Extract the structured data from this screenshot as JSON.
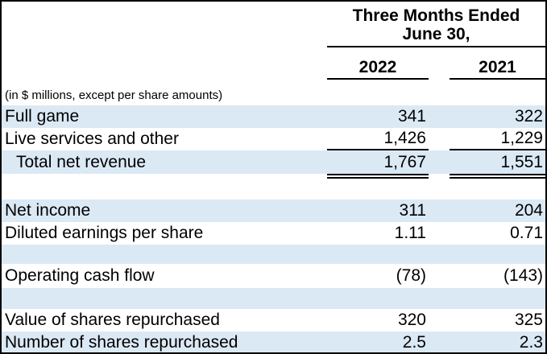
{
  "document": {
    "header": {
      "title_line1": "Three Months Ended",
      "title_line2": "June 30,",
      "year_col_1": "2022",
      "year_col_2": "2021"
    },
    "note": "(in $ millions, except per share amounts)",
    "rows": [
      {
        "label": "Full game",
        "y2022": "341",
        "y2021": "322"
      },
      {
        "label": "Live services and other",
        "y2022": "1,426",
        "y2021": "1,229"
      },
      {
        "label": "Total net revenue",
        "y2022": "1,767",
        "y2021": "1,551"
      },
      {
        "label": "Net income",
        "y2022": "311",
        "y2021": "204"
      },
      {
        "label": "Diluted earnings per share",
        "y2022": "1.11",
        "y2021": "0.71"
      },
      {
        "label": "Operating cash flow",
        "y2022": "(78)",
        "y2021": "(143)"
      },
      {
        "label": "Value of shares repurchased",
        "y2022": "320",
        "y2021": "325"
      },
      {
        "label": "Number of shares repurchased",
        "y2022": "2.5",
        "y2021": "2.3"
      }
    ],
    "colors": {
      "row_band": "#dbe9f5",
      "border": "#000000",
      "text": "#000000"
    }
  }
}
